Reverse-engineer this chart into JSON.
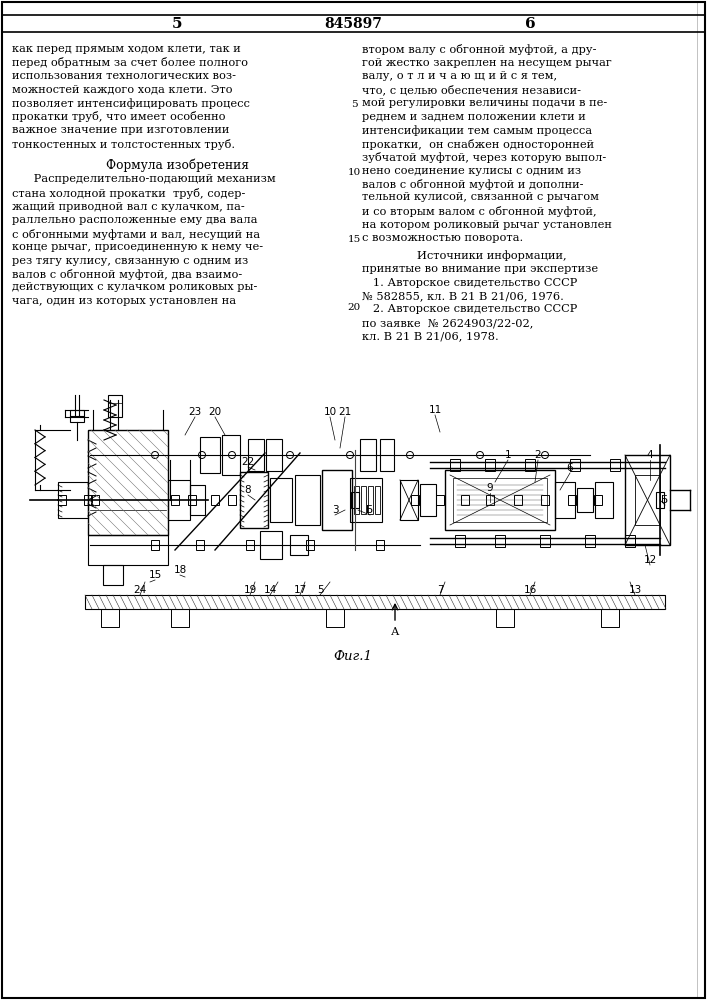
{
  "page_number_left": "5",
  "patent_number": "845897",
  "page_number_right": "6",
  "left_col_text": [
    "как перед прямым ходом клети, так и",
    "перед обратным за счет более полного",
    "использования технологических воз-",
    "можностей каждого хода клети. Это",
    "позволяет интенсифицировать процесс",
    "прокатки труб, что имеет особенно",
    "важное значение при изготовлении",
    "тонкостенных и толстостенных труб."
  ],
  "formula_title": "Формула изобретения",
  "formula_text": [
    "      Распределительно-подающий механизм",
    "стана холодной прокатки  труб, содер-",
    "жащий приводной вал с кулачком, па-",
    "раллельно расположенные ему два вала",
    "с обгонными муфтами и вал, несущий на",
    "конце рычаг, присоединенную к нему че-",
    "рез тягу кулису, связанную с одним из",
    "валов с обгонной муфтой, два взаимо-",
    "действующих с кулачком роликовых ры-",
    "чага, один из которых установлен на"
  ],
  "line_numbers": [
    "5",
    "10",
    "15",
    "20"
  ],
  "right_col_text": [
    "втором валу с обгонной муфтой, а дру-",
    "гой жестко закреплен на несущем рычаг",
    "валу, о т л и ч а ю щ и й с я тем,",
    "что, с целью обеспечения независи-",
    "мой регулировки величины подачи в пе-",
    "реднем и заднем положении клети и",
    "интенсификации тем самым процесса",
    "прокатки,  он снабжен односторонней",
    "зубчатой муфтой, через которую выпол-",
    "нено соединение кулисы с одним из",
    "валов с обгонной муфтой и дополни-",
    "тельной кулисой, связанной с рычагом",
    "и со вторым валом с обгонной муфтой,",
    "на котором роликовый рычаг установлен",
    "с возможностью поворота."
  ],
  "sources_title": "Источники информации,",
  "sources_text": [
    "принятые во внимание при экспертизе",
    "   1. Авторское свидетельство СССР",
    "№ 582855, кл. В 21 В 21/06, 1976.",
    "   2. Авторское свидетельство СССР",
    "по заявке  № 2624903/22-02,",
    "кл. В 21 В 21/06, 1978."
  ],
  "fig_label": "Фиг.1",
  "background_color": "#ffffff",
  "text_color": "#000000"
}
